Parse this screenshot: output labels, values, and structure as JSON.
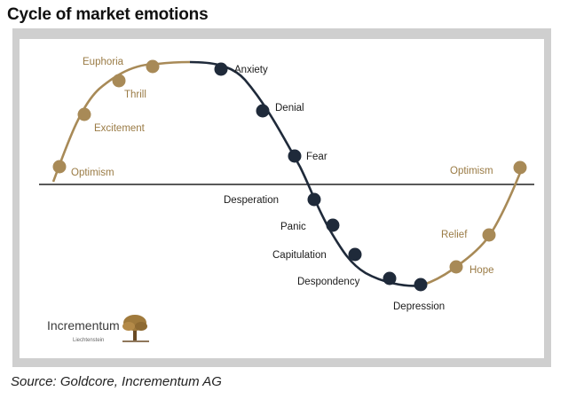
{
  "title": "Cycle of market emotions",
  "source": "Source: Goldcore, Incrementum AG",
  "logo": {
    "name": "Incrementum",
    "sub": "Liechtenstein"
  },
  "colors": {
    "gold": "#a88a57",
    "navy": "#1f2a3a",
    "gold_text": "#9a7b45"
  },
  "stages": [
    {
      "label": "Optimism",
      "phase": "up"
    },
    {
      "label": "Excitement",
      "phase": "up"
    },
    {
      "label": "Thrill",
      "phase": "up"
    },
    {
      "label": "Euphoria",
      "phase": "up"
    },
    {
      "label": "Anxiety",
      "phase": "down"
    },
    {
      "label": "Denial",
      "phase": "down"
    },
    {
      "label": "Fear",
      "phase": "down"
    },
    {
      "label": "Desperation",
      "phase": "down"
    },
    {
      "label": "Panic",
      "phase": "down"
    },
    {
      "label": "Capitulation",
      "phase": "down"
    },
    {
      "label": "Despondency",
      "phase": "down"
    },
    {
      "label": "Depression",
      "phase": "down"
    },
    {
      "label": "Hope",
      "phase": "up"
    },
    {
      "label": "Relief",
      "phase": "up"
    },
    {
      "label": "Optimism",
      "phase": "up"
    }
  ]
}
